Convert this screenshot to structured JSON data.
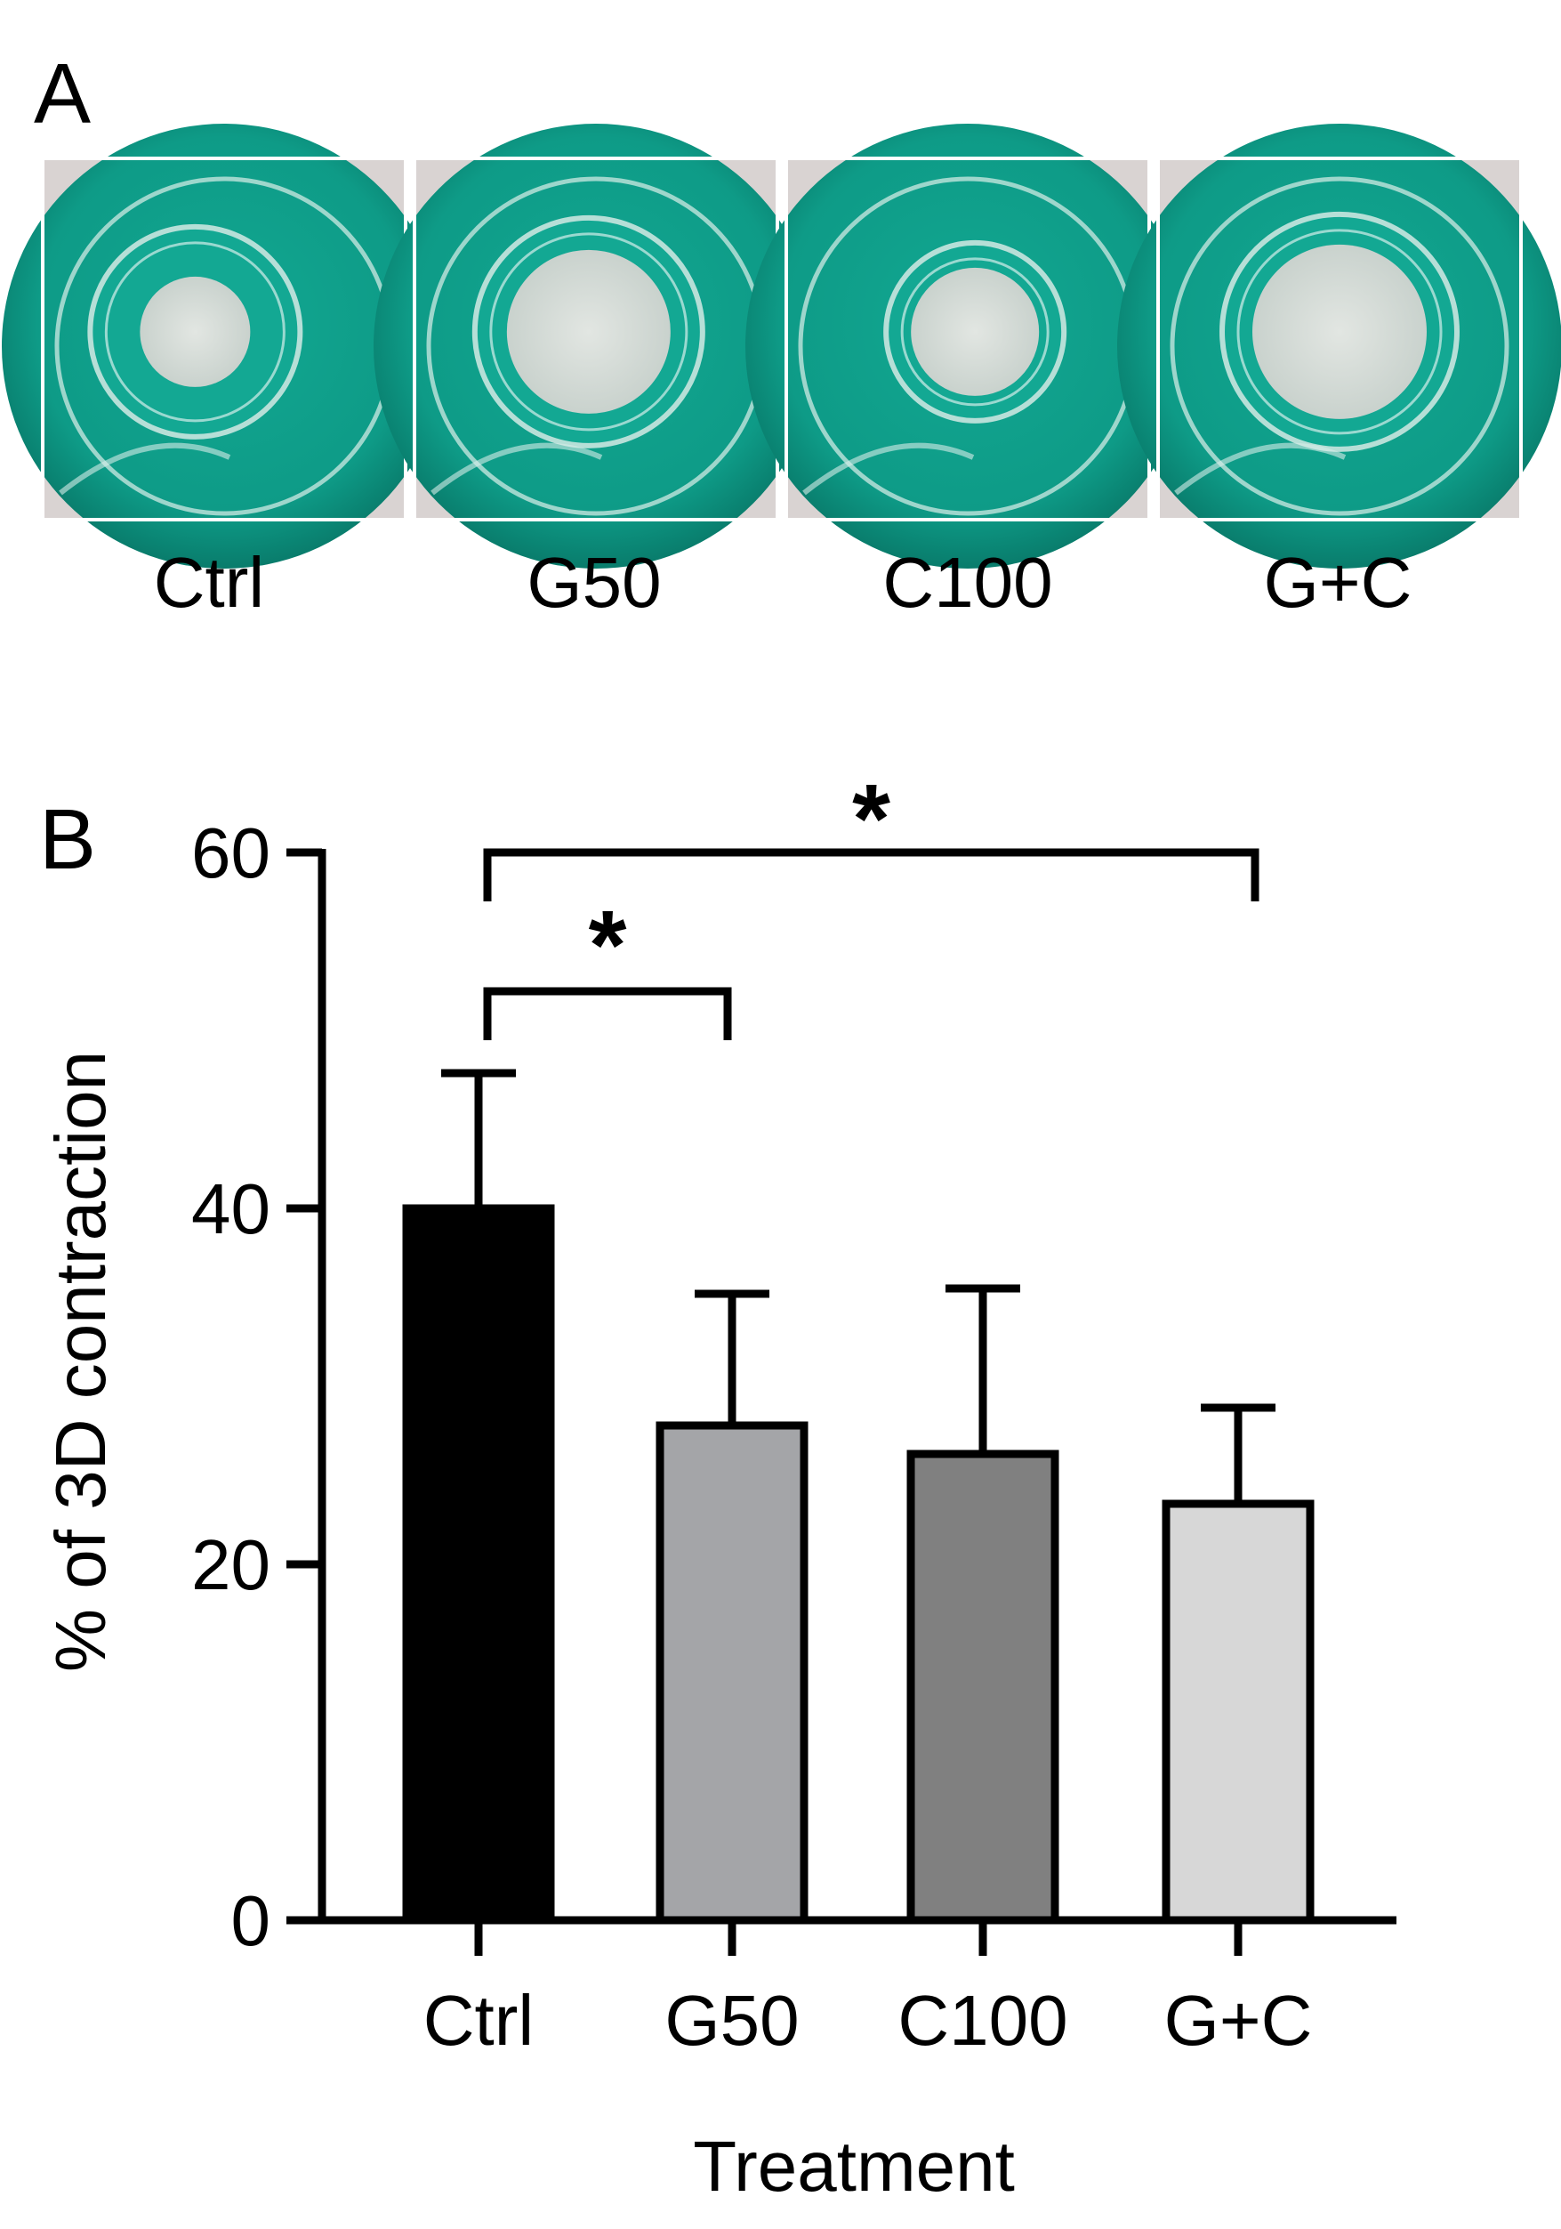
{
  "panel_a": {
    "letter": "A",
    "wells": [
      {
        "label": "Ctrl"
      },
      {
        "label": "G50"
      },
      {
        "label": "C100"
      },
      {
        "label": "G+C"
      }
    ],
    "colors": {
      "medium": "#0e9b87",
      "medium_dark": "#0a7f6f",
      "background": "#d9d3d2",
      "gel": "#d7dcd7"
    }
  },
  "panel_b": {
    "letter": "B"
  },
  "chart_data": {
    "type": "bar",
    "title": "",
    "xlabel": "Treatment",
    "ylabel": "% of 3D contraction",
    "categories": [
      "Ctrl",
      "G50",
      "C100",
      "G+C"
    ],
    "values": [
      40,
      27.8,
      26.2,
      23.4
    ],
    "error_upper": [
      7.6,
      7.4,
      9.3,
      5.4
    ],
    "bar_colors": [
      "#000000",
      "#a4a5a8",
      "#808080",
      "#d7d7d7"
    ],
    "ylim": [
      0,
      60
    ],
    "yticks": [
      0,
      20,
      40,
      60
    ],
    "grid": false,
    "significance": [
      {
        "from": "Ctrl",
        "to": "G50",
        "label": "*"
      },
      {
        "from": "Ctrl",
        "to": "G+C",
        "label": "*"
      }
    ]
  }
}
